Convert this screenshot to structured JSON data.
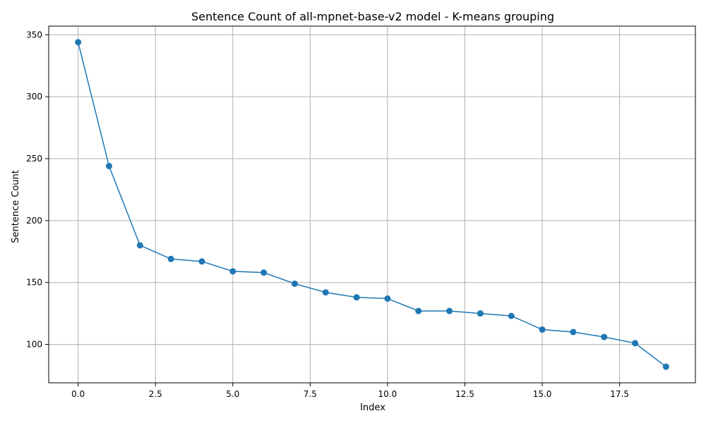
{
  "chart_data": {
    "type": "line",
    "title": "Sentence Count of all-mpnet-base-v2 model - K-means grouping",
    "xlabel": "Index",
    "ylabel": "Sentence Count",
    "x": [
      0,
      1,
      2,
      3,
      4,
      5,
      6,
      7,
      8,
      9,
      10,
      11,
      12,
      13,
      14,
      15,
      16,
      17,
      18,
      19
    ],
    "series": [
      {
        "values": [
          344,
          244,
          180,
          169,
          167,
          159,
          158,
          149,
          142,
          138,
          137,
          127,
          127,
          125,
          123,
          112,
          110,
          106,
          101,
          82
        ]
      }
    ],
    "xlim": [
      -0.95,
      19.95
    ],
    "ylim": [
      69,
      357
    ],
    "x_ticks": [
      "0.0",
      "2.5",
      "5.0",
      "7.5",
      "10.0",
      "12.5",
      "15.0",
      "17.5"
    ],
    "y_ticks": [
      "100",
      "150",
      "200",
      "250",
      "300",
      "350"
    ],
    "grid": true,
    "marker": "circle",
    "colors": {
      "line": "#1f77b4",
      "grid": "#b0b0b0",
      "axes": "#000000"
    }
  }
}
